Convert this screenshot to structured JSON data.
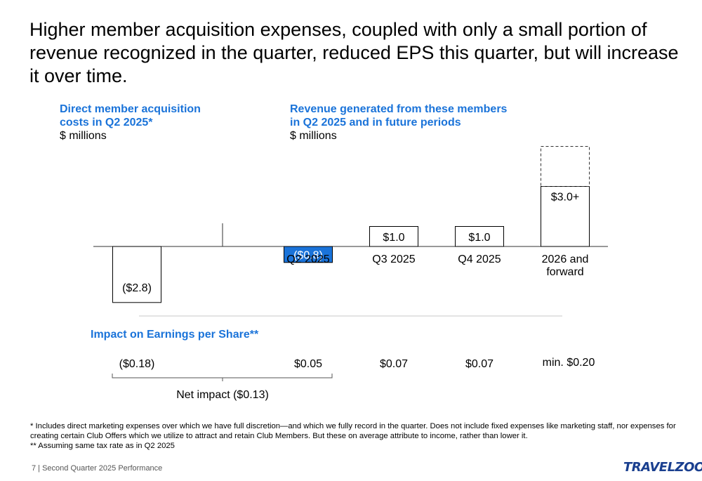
{
  "headline": "Higher member acquisition expenses, coupled with only a small portion of revenue recognized in the quarter, reduced EPS this quarter, but will increase it over time.",
  "left_panel": {
    "title_line1": "Direct member acquisition",
    "title_line2": "costs in Q2 2025*",
    "unit": "$ millions"
  },
  "right_panel": {
    "title_line1": "Revenue generated from these members",
    "title_line2": "in Q2 2025 and in future periods",
    "unit": "$ millions"
  },
  "chart_data": {
    "type": "bar",
    "categories": [
      "",
      "Q2 2025",
      "Q3 2025",
      "Q4 2025",
      "2026 and forward"
    ],
    "category_lines": [
      [
        ""
      ],
      [
        "Q2 2025"
      ],
      [
        "Q3 2025"
      ],
      [
        "Q4 2025"
      ],
      [
        "2026 and",
        "forward"
      ]
    ],
    "values": [
      -2.8,
      -0.8,
      1.0,
      1.0,
      3.0
    ],
    "data_labels": [
      "($2.8)",
      "($0.8)",
      "$1.0",
      "$1.0",
      "$3.0+"
    ],
    "highlight_index": 1,
    "open_ended_index": 4,
    "colors": {
      "outline": "#000000",
      "highlight": "#1a73d9",
      "highlight_text": "#ffffff"
    }
  },
  "eps": {
    "title": "Impact on Earnings per Share**",
    "values": [
      "($0.18)",
      "$0.05",
      "$0.07",
      "$0.07",
      "min. $0.20"
    ],
    "net_impact": "Net impact ($0.13)"
  },
  "footnotes": [
    "* Includes direct marketing expenses over which we have full discretion—and which we fully record in the quarter. Does not include fixed expenses like marketing staff, nor expenses for creating certain Club Offers which we utilize to attract and retain Club Members. But these on average attribute to income, rather than lower it.",
    "** Assuming same tax rate as in Q2 2025"
  ],
  "footer": {
    "page": "7 | Second Quarter 2025 Performance",
    "logo": "TRAVELZOO",
    "logo_mark": "®"
  }
}
